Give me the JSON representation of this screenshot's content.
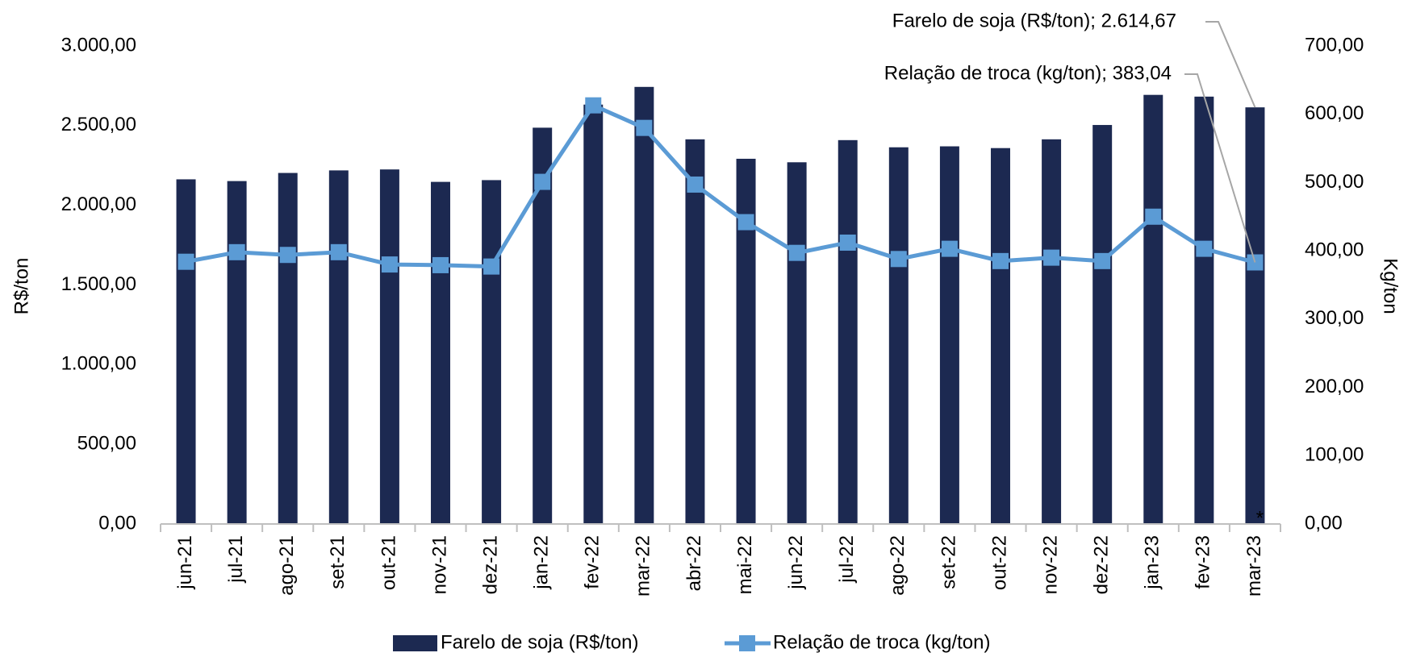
{
  "chart_data": {
    "type": "bar_line",
    "categories": [
      "jun-21",
      "jul-21",
      "ago-21",
      "set-21",
      "out-21",
      "nov-21",
      "dez-21",
      "jan-22",
      "fev-22",
      "mar-22",
      "abr-22",
      "mai-22",
      "jun-22",
      "jul-22",
      "ago-22",
      "set-22",
      "out-22",
      "nov-22",
      "dez-22",
      "jan-23",
      "fev-23",
      "mar-23"
    ],
    "category_note": "*",
    "series": [
      {
        "name": "Farelo de soja (R$/ton)",
        "type": "bar",
        "color": "#1c2951",
        "values": [
          2163,
          2152,
          2203,
          2219,
          2225,
          2147,
          2158,
          2487,
          2632,
          2743,
          2414,
          2292,
          2270,
          2409,
          2364,
          2370,
          2359,
          2414,
          2504,
          2693,
          2682,
          2614.67
        ]
      },
      {
        "name": "Relação de troca (kg/ton)",
        "type": "line",
        "axis": "y2",
        "color": "#5b9bd5",
        "values": [
          384,
          398,
          394,
          398,
          380,
          379,
          377,
          501,
          613,
          580,
          497,
          442,
          397,
          412,
          388,
          403,
          385,
          390,
          385,
          450,
          403,
          383.04
        ]
      }
    ],
    "annotations": [
      "Farelo de soja (R$/ton); 2.614,67",
      "Relação de troca (kg/ton); 383,04"
    ],
    "ylabel": "R$/ton",
    "y2label": "Kg/ton",
    "ylim": [
      0,
      3000
    ],
    "yticks": [
      {
        "value": 0,
        "label": "0,00"
      },
      {
        "value": 500,
        "label": "500,00"
      },
      {
        "value": 1000,
        "label": "1.000,00"
      },
      {
        "value": 1500,
        "label": "1.500,00"
      },
      {
        "value": 2000,
        "label": "2.000,00"
      },
      {
        "value": 2500,
        "label": "2.500,00"
      },
      {
        "value": 3000,
        "label": "3.000,00"
      }
    ],
    "y2lim": [
      0,
      700
    ],
    "y2ticks": [
      {
        "value": 0,
        "label": "0,00"
      },
      {
        "value": 100,
        "label": "100,00"
      },
      {
        "value": 200,
        "label": "200,00"
      },
      {
        "value": 300,
        "label": "300,00"
      },
      {
        "value": 400,
        "label": "400,00"
      },
      {
        "value": 500,
        "label": "500,00"
      },
      {
        "value": 600,
        "label": "600,00"
      },
      {
        "value": 700,
        "label": "700,00"
      }
    ],
    "legend": "bottom"
  }
}
